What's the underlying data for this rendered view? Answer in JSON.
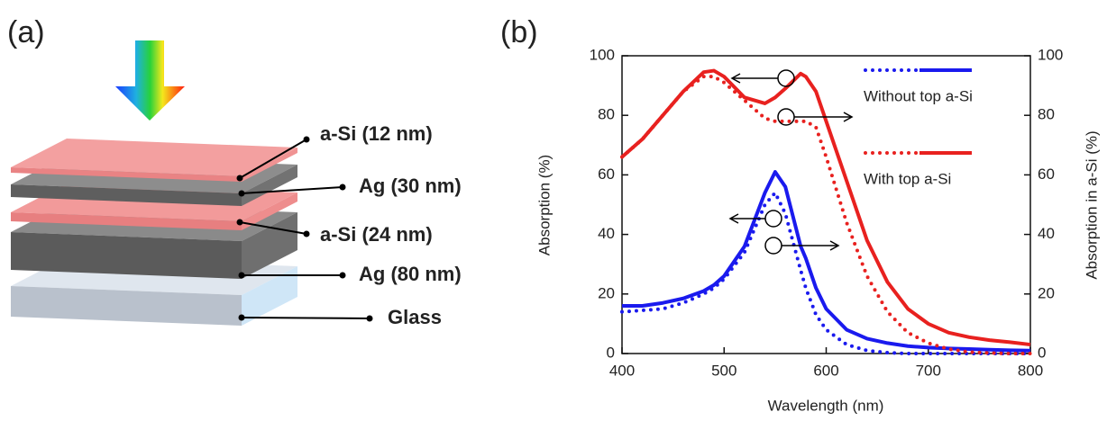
{
  "panel_a": {
    "label": "(a)",
    "layers": [
      "a-Si (12 nm)",
      "Ag (30 nm)",
      "a-Si (24 nm)",
      "Ag (80 nm)",
      "Glass"
    ]
  },
  "chart_data": {
    "type": "line",
    "label": "(b)",
    "x_label": "Wavelength (nm)",
    "y_label": "Absorption (%)",
    "y2_label": "Absorption in a-Si (%)",
    "x": [
      400,
      420,
      440,
      460,
      480,
      490,
      500,
      520,
      540,
      550,
      560,
      575,
      580,
      590,
      600,
      620,
      640,
      660,
      680,
      700,
      720,
      740,
      760,
      780,
      800
    ],
    "series": [
      {
        "name": "Without top a-Si",
        "color": "#1a1aee",
        "style": "solid",
        "axis": "y",
        "values": [
          16,
          16,
          17,
          18.5,
          21,
          23,
          26,
          36,
          54,
          61,
          56,
          36,
          32,
          22,
          15,
          8,
          5,
          3.5,
          2.5,
          2,
          1.7,
          1.5,
          1.3,
          1.1,
          1
        ]
      },
      {
        "name": "Without top a-Si",
        "color": "#1a1aee",
        "style": "dotted",
        "axis": "y2",
        "values": [
          14,
          14.5,
          15,
          17,
          20,
          22,
          25,
          34,
          50,
          54,
          47,
          28,
          22,
          13,
          8,
          3,
          1,
          0.3,
          0,
          0,
          0,
          0,
          0,
          0,
          0
        ]
      },
      {
        "name": "With top a-Si",
        "color": "#e8211f",
        "style": "solid",
        "axis": "y",
        "values": [
          66,
          72,
          80,
          88,
          94.5,
          95,
          93,
          86,
          84,
          86,
          89,
          94,
          93,
          88,
          78,
          58,
          38,
          24,
          15,
          10,
          7,
          5.5,
          4.5,
          3.8,
          3
        ]
      },
      {
        "name": "With top a-Si",
        "color": "#e8211f",
        "style": "dotted",
        "axis": "y2",
        "values": [
          66,
          72,
          80,
          88,
          93,
          93,
          91,
          85,
          79,
          78,
          78,
          78,
          78,
          76,
          66,
          44,
          26,
          14,
          7,
          3.5,
          1.5,
          0.5,
          0.2,
          0,
          0
        ]
      }
    ],
    "xlim": [
      400,
      800
    ],
    "xticks": [
      400,
      500,
      600,
      700,
      800
    ],
    "ylim": [
      0,
      100
    ],
    "yticks": [
      0,
      20,
      40,
      60,
      80,
      100
    ],
    "y2lim": [
      0,
      100
    ],
    "y2ticks": [
      0,
      20,
      40,
      60,
      80,
      100
    ]
  }
}
